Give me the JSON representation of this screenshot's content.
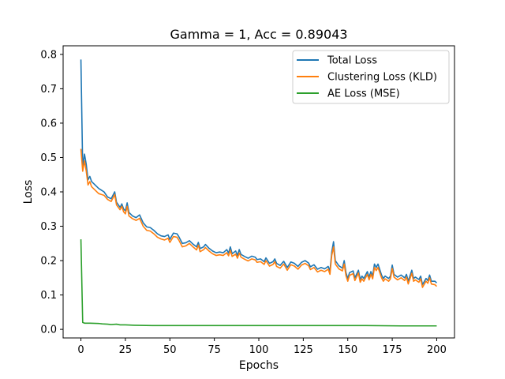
{
  "chart_data": {
    "type": "line",
    "title": "Gamma = 1, Acc = 0.89043",
    "xlabel": "Epochs",
    "ylabel": "Loss",
    "xlim": [
      -10,
      210
    ],
    "ylim": [
      -0.025,
      0.825
    ],
    "xticks": [
      0,
      25,
      50,
      75,
      100,
      125,
      150,
      175,
      200
    ],
    "yticks": [
      0.0,
      0.1,
      0.2,
      0.3,
      0.4,
      0.5,
      0.6,
      0.7,
      0.8
    ],
    "xtick_labels": [
      "0",
      "25",
      "50",
      "75",
      "100",
      "125",
      "150",
      "175",
      "200"
    ],
    "ytick_labels": [
      "0.0",
      "0.1",
      "0.2",
      "0.3",
      "0.4",
      "0.5",
      "0.6",
      "0.7",
      "0.8"
    ],
    "grid": false,
    "legend_position": "top-right",
    "series": [
      {
        "name": "Total Loss",
        "color": "#1f77b4",
        "points": [
          [
            0,
            0.785
          ],
          [
            1,
            0.47
          ],
          [
            2,
            0.51
          ],
          [
            3,
            0.48
          ],
          [
            4,
            0.435
          ],
          [
            5,
            0.445
          ],
          [
            6,
            0.43
          ],
          [
            8,
            0.42
          ],
          [
            10,
            0.41
          ],
          [
            13,
            0.4
          ],
          [
            15,
            0.385
          ],
          [
            17,
            0.38
          ],
          [
            19,
            0.4
          ],
          [
            20,
            0.37
          ],
          [
            22,
            0.355
          ],
          [
            23,
            0.365
          ],
          [
            24,
            0.35
          ],
          [
            25,
            0.345
          ],
          [
            26,
            0.368
          ],
          [
            27,
            0.34
          ],
          [
            29,
            0.33
          ],
          [
            31,
            0.325
          ],
          [
            33,
            0.333
          ],
          [
            35,
            0.31
          ],
          [
            37,
            0.298
          ],
          [
            39,
            0.296
          ],
          [
            41,
            0.288
          ],
          [
            43,
            0.278
          ],
          [
            45,
            0.272
          ],
          [
            47,
            0.27
          ],
          [
            49,
            0.275
          ],
          [
            50,
            0.262
          ],
          [
            52,
            0.28
          ],
          [
            54,
            0.278
          ],
          [
            55,
            0.27
          ],
          [
            57,
            0.25
          ],
          [
            59,
            0.252
          ],
          [
            61,
            0.258
          ],
          [
            63,
            0.248
          ],
          [
            65,
            0.24
          ],
          [
            66,
            0.253
          ],
          [
            67,
            0.235
          ],
          [
            69,
            0.24
          ],
          [
            70,
            0.247
          ],
          [
            72,
            0.236
          ],
          [
            74,
            0.228
          ],
          [
            76,
            0.223
          ],
          [
            78,
            0.225
          ],
          [
            80,
            0.223
          ],
          [
            82,
            0.232
          ],
          [
            83,
            0.222
          ],
          [
            84,
            0.24
          ],
          [
            85,
            0.22
          ],
          [
            87,
            0.228
          ],
          [
            88,
            0.215
          ],
          [
            89,
            0.232
          ],
          [
            90,
            0.218
          ],
          [
            92,
            0.212
          ],
          [
            94,
            0.207
          ],
          [
            96,
            0.213
          ],
          [
            98,
            0.21
          ],
          [
            99,
            0.203
          ],
          [
            101,
            0.205
          ],
          [
            103,
            0.197
          ],
          [
            104,
            0.208
          ],
          [
            106,
            0.192
          ],
          [
            108,
            0.197
          ],
          [
            109,
            0.205
          ],
          [
            110,
            0.192
          ],
          [
            112,
            0.186
          ],
          [
            114,
            0.198
          ],
          [
            116,
            0.18
          ],
          [
            118,
            0.196
          ],
          [
            120,
            0.192
          ],
          [
            122,
            0.183
          ],
          [
            124,
            0.195
          ],
          [
            126,
            0.2
          ],
          [
            128,
            0.193
          ],
          [
            129,
            0.182
          ],
          [
            131,
            0.188
          ],
          [
            133,
            0.175
          ],
          [
            135,
            0.18
          ],
          [
            137,
            0.176
          ],
          [
            139,
            0.183
          ],
          [
            140,
            0.17
          ],
          [
            141,
            0.225
          ],
          [
            142,
            0.255
          ],
          [
            143,
            0.2
          ],
          [
            145,
            0.185
          ],
          [
            147,
            0.178
          ],
          [
            148,
            0.2
          ],
          [
            149,
            0.165
          ],
          [
            150,
            0.148
          ],
          [
            151,
            0.165
          ],
          [
            153,
            0.17
          ],
          [
            154,
            0.15
          ],
          [
            156,
            0.172
          ],
          [
            157,
            0.145
          ],
          [
            158,
            0.155
          ],
          [
            159,
            0.148
          ],
          [
            161,
            0.168
          ],
          [
            162,
            0.152
          ],
          [
            163,
            0.168
          ],
          [
            164,
            0.155
          ],
          [
            165,
            0.19
          ],
          [
            166,
            0.18
          ],
          [
            167,
            0.19
          ],
          [
            169,
            0.158
          ],
          [
            170,
            0.148
          ],
          [
            171,
            0.155
          ],
          [
            173,
            0.148
          ],
          [
            174,
            0.155
          ],
          [
            175,
            0.187
          ],
          [
            176,
            0.16
          ],
          [
            178,
            0.152
          ],
          [
            180,
            0.158
          ],
          [
            182,
            0.15
          ],
          [
            183,
            0.16
          ],
          [
            184,
            0.14
          ],
          [
            186,
            0.172
          ],
          [
            187,
            0.148
          ],
          [
            188,
            0.152
          ],
          [
            190,
            0.145
          ],
          [
            191,
            0.155
          ],
          [
            192,
            0.13
          ],
          [
            194,
            0.148
          ],
          [
            195,
            0.142
          ],
          [
            196,
            0.158
          ],
          [
            197,
            0.14
          ],
          [
            199,
            0.14
          ],
          [
            200,
            0.135
          ]
        ]
      },
      {
        "name": "Clustering Loss (KLD)",
        "color": "#ff7f0e",
        "points": [
          [
            0,
            0.525
          ],
          [
            1,
            0.46
          ],
          [
            2,
            0.49
          ],
          [
            3,
            0.46
          ],
          [
            4,
            0.42
          ],
          [
            5,
            0.43
          ],
          [
            6,
            0.415
          ],
          [
            8,
            0.405
          ],
          [
            10,
            0.395
          ],
          [
            13,
            0.39
          ],
          [
            15,
            0.378
          ],
          [
            17,
            0.372
          ],
          [
            19,
            0.392
          ],
          [
            20,
            0.362
          ],
          [
            22,
            0.348
          ],
          [
            23,
            0.358
          ],
          [
            24,
            0.342
          ],
          [
            25,
            0.336
          ],
          [
            26,
            0.358
          ],
          [
            27,
            0.33
          ],
          [
            29,
            0.322
          ],
          [
            31,
            0.317
          ],
          [
            33,
            0.323
          ],
          [
            35,
            0.3
          ],
          [
            37,
            0.288
          ],
          [
            39,
            0.286
          ],
          [
            41,
            0.278
          ],
          [
            43,
            0.268
          ],
          [
            45,
            0.263
          ],
          [
            47,
            0.26
          ],
          [
            49,
            0.265
          ],
          [
            50,
            0.253
          ],
          [
            52,
            0.27
          ],
          [
            54,
            0.268
          ],
          [
            55,
            0.26
          ],
          [
            57,
            0.24
          ],
          [
            59,
            0.243
          ],
          [
            61,
            0.25
          ],
          [
            63,
            0.24
          ],
          [
            65,
            0.231
          ],
          [
            66,
            0.245
          ],
          [
            67,
            0.226
          ],
          [
            69,
            0.232
          ],
          [
            70,
            0.238
          ],
          [
            72,
            0.228
          ],
          [
            74,
            0.22
          ],
          [
            76,
            0.215
          ],
          [
            78,
            0.217
          ],
          [
            80,
            0.215
          ],
          [
            82,
            0.223
          ],
          [
            83,
            0.214
          ],
          [
            84,
            0.23
          ],
          [
            85,
            0.212
          ],
          [
            87,
            0.219
          ],
          [
            88,
            0.207
          ],
          [
            89,
            0.222
          ],
          [
            90,
            0.21
          ],
          [
            92,
            0.204
          ],
          [
            94,
            0.199
          ],
          [
            96,
            0.205
          ],
          [
            98,
            0.202
          ],
          [
            99,
            0.195
          ],
          [
            101,
            0.197
          ],
          [
            103,
            0.189
          ],
          [
            104,
            0.2
          ],
          [
            106,
            0.184
          ],
          [
            108,
            0.189
          ],
          [
            109,
            0.197
          ],
          [
            110,
            0.183
          ],
          [
            112,
            0.178
          ],
          [
            114,
            0.19
          ],
          [
            116,
            0.172
          ],
          [
            118,
            0.188
          ],
          [
            120,
            0.184
          ],
          [
            122,
            0.175
          ],
          [
            124,
            0.187
          ],
          [
            126,
            0.192
          ],
          [
            128,
            0.185
          ],
          [
            129,
            0.174
          ],
          [
            131,
            0.18
          ],
          [
            133,
            0.167
          ],
          [
            135,
            0.172
          ],
          [
            137,
            0.168
          ],
          [
            139,
            0.175
          ],
          [
            140,
            0.16
          ],
          [
            141,
            0.215
          ],
          [
            142,
            0.24
          ],
          [
            143,
            0.19
          ],
          [
            145,
            0.176
          ],
          [
            147,
            0.17
          ],
          [
            148,
            0.19
          ],
          [
            149,
            0.156
          ],
          [
            150,
            0.14
          ],
          [
            151,
            0.157
          ],
          [
            153,
            0.162
          ],
          [
            154,
            0.142
          ],
          [
            156,
            0.164
          ],
          [
            157,
            0.137
          ],
          [
            158,
            0.147
          ],
          [
            159,
            0.14
          ],
          [
            161,
            0.16
          ],
          [
            162,
            0.144
          ],
          [
            163,
            0.16
          ],
          [
            164,
            0.147
          ],
          [
            165,
            0.18
          ],
          [
            166,
            0.171
          ],
          [
            167,
            0.18
          ],
          [
            169,
            0.15
          ],
          [
            170,
            0.14
          ],
          [
            171,
            0.147
          ],
          [
            173,
            0.14
          ],
          [
            174,
            0.147
          ],
          [
            175,
            0.177
          ],
          [
            176,
            0.152
          ],
          [
            178,
            0.144
          ],
          [
            180,
            0.15
          ],
          [
            182,
            0.142
          ],
          [
            183,
            0.152
          ],
          [
            184,
            0.132
          ],
          [
            186,
            0.163
          ],
          [
            187,
            0.14
          ],
          [
            188,
            0.144
          ],
          [
            190,
            0.137
          ],
          [
            191,
            0.147
          ],
          [
            192,
            0.122
          ],
          [
            194,
            0.14
          ],
          [
            195,
            0.134
          ],
          [
            196,
            0.15
          ],
          [
            197,
            0.132
          ],
          [
            199,
            0.13
          ],
          [
            200,
            0.125
          ]
        ]
      },
      {
        "name": "AE Loss (MSE)",
        "color": "#2ca02c",
        "points": [
          [
            0,
            0.262
          ],
          [
            1,
            0.02
          ],
          [
            2,
            0.018
          ],
          [
            5,
            0.018
          ],
          [
            10,
            0.017
          ],
          [
            12,
            0.016
          ],
          [
            15,
            0.015
          ],
          [
            17,
            0.014
          ],
          [
            20,
            0.015
          ],
          [
            22,
            0.013
          ],
          [
            25,
            0.013
          ],
          [
            30,
            0.012
          ],
          [
            40,
            0.011
          ],
          [
            60,
            0.011
          ],
          [
            80,
            0.011
          ],
          [
            100,
            0.011
          ],
          [
            120,
            0.011
          ],
          [
            140,
            0.011
          ],
          [
            160,
            0.011
          ],
          [
            180,
            0.01
          ],
          [
            200,
            0.01
          ]
        ]
      }
    ]
  }
}
